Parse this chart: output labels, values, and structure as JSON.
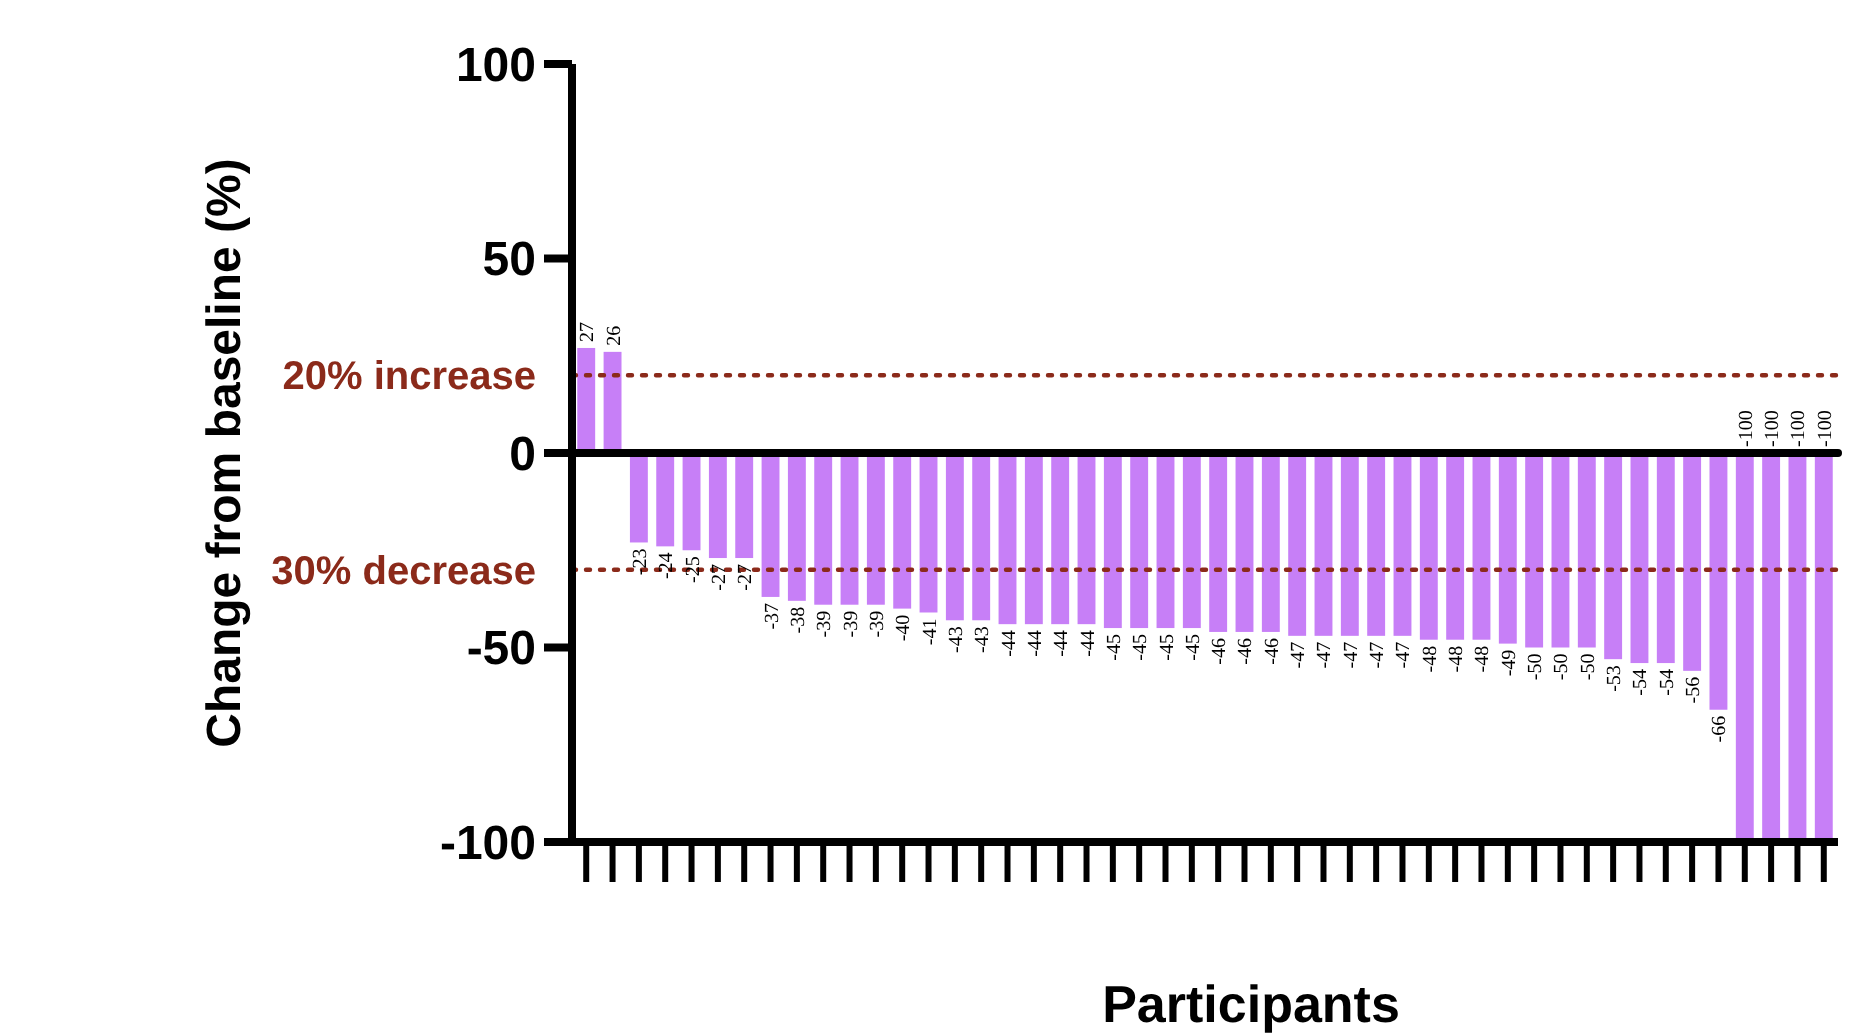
{
  "chart_data": {
    "type": "bar",
    "xlabel": "Participants",
    "ylabel": "Change from baseline (%)",
    "categories": [
      null,
      null,
      null,
      null,
      null,
      null,
      null,
      null,
      null,
      null,
      null,
      null,
      null,
      null,
      null,
      null,
      null,
      null,
      null,
      null,
      null,
      null,
      null,
      null,
      null,
      null,
      null,
      null,
      null,
      null,
      null,
      null,
      null,
      null,
      null,
      null,
      null,
      null,
      null,
      null,
      null,
      null,
      null,
      null,
      null,
      null,
      null,
      null
    ],
    "values": [
      27,
      26,
      -23,
      -24,
      -25,
      -27,
      -27,
      -37,
      -38,
      -39,
      -39,
      -39,
      -40,
      -41,
      -43,
      -43,
      -44,
      -44,
      -44,
      -44,
      -45,
      -45,
      -45,
      -45,
      -46,
      -46,
      -46,
      -47,
      -47,
      -47,
      -47,
      -47,
      -48,
      -48,
      -48,
      -49,
      -50,
      -50,
      -50,
      -53,
      -54,
      -54,
      -56,
      -66,
      -100,
      -100,
      -100,
      -100
    ],
    "color": "#c77ff7",
    "ylim": [
      -100,
      100
    ],
    "yticks": [
      -100,
      -50,
      0,
      50,
      100
    ],
    "data_labels": true,
    "ref_lines": [
      {
        "axis": "y",
        "value": 0,
        "color": "#000000",
        "line_style": "solid"
      },
      {
        "axis": "y",
        "value": 20,
        "label": "20% increase",
        "color": "#8b2a1a",
        "line_style": "dotted"
      },
      {
        "axis": "y",
        "value": -30,
        "label": "30% decrease",
        "color": "#8b2a1a",
        "line_style": "dotted"
      }
    ]
  }
}
